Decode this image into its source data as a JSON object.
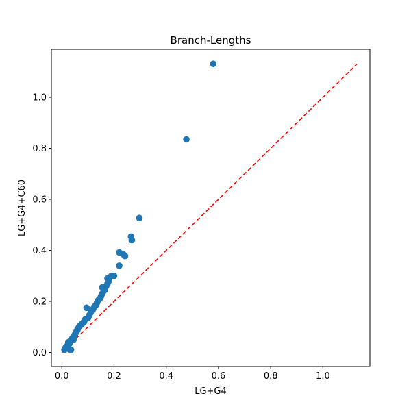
{
  "chart_data": {
    "type": "scatter",
    "title": "Branch-Lengths",
    "xlabel": "LG+G4",
    "ylabel": "LG+G4+C60",
    "xlim": [
      -0.04,
      1.18
    ],
    "ylim": [
      -0.055,
      1.188
    ],
    "xticks": [
      {
        "value": 0.0,
        "label": "0.0"
      },
      {
        "value": 0.2,
        "label": "0.2"
      },
      {
        "value": 0.4,
        "label": "0.4"
      },
      {
        "value": 0.6,
        "label": "0.6"
      },
      {
        "value": 0.8,
        "label": "0.8"
      },
      {
        "value": 1.0,
        "label": "1.0"
      }
    ],
    "yticks": [
      {
        "value": 0.0,
        "label": "0.0"
      },
      {
        "value": 0.2,
        "label": "0.2"
      },
      {
        "value": 0.4,
        "label": "0.4"
      },
      {
        "value": 0.6,
        "label": "0.6"
      },
      {
        "value": 0.8,
        "label": "0.8"
      },
      {
        "value": 1.0,
        "label": "1.0"
      }
    ],
    "grid": false,
    "point_color": "#1f77b4",
    "reference_line": {
      "from": [
        0.0,
        0.0
      ],
      "to": [
        1.13,
        1.13
      ],
      "color": "#ff0000",
      "style": "dashed"
    },
    "points": [
      [
        0.01,
        0.01
      ],
      [
        0.012,
        0.015
      ],
      [
        0.015,
        0.02
      ],
      [
        0.018,
        0.022
      ],
      [
        0.02,
        0.025
      ],
      [
        0.022,
        0.028
      ],
      [
        0.025,
        0.03
      ],
      [
        0.028,
        0.033
      ],
      [
        0.03,
        0.036
      ],
      [
        0.032,
        0.04
      ],
      [
        0.035,
        0.045
      ],
      [
        0.038,
        0.05
      ],
      [
        0.04,
        0.055
      ],
      [
        0.042,
        0.058
      ],
      [
        0.045,
        0.06
      ],
      [
        0.048,
        0.065
      ],
      [
        0.05,
        0.07
      ],
      [
        0.052,
        0.075
      ],
      [
        0.055,
        0.08
      ],
      [
        0.058,
        0.085
      ],
      [
        0.06,
        0.09
      ],
      [
        0.063,
        0.095
      ],
      [
        0.066,
        0.1
      ],
      [
        0.07,
        0.105
      ],
      [
        0.075,
        0.11
      ],
      [
        0.08,
        0.115
      ],
      [
        0.085,
        0.12
      ],
      [
        0.03,
        0.012
      ],
      [
        0.035,
        0.01
      ],
      [
        0.025,
        0.04
      ],
      [
        0.045,
        0.05
      ],
      [
        0.09,
        0.13
      ],
      [
        0.1,
        0.135
      ],
      [
        0.105,
        0.145
      ],
      [
        0.11,
        0.155
      ],
      [
        0.115,
        0.165
      ],
      [
        0.12,
        0.17
      ],
      [
        0.125,
        0.18
      ],
      [
        0.13,
        0.185
      ],
      [
        0.135,
        0.195
      ],
      [
        0.14,
        0.205
      ],
      [
        0.145,
        0.21
      ],
      [
        0.15,
        0.22
      ],
      [
        0.155,
        0.23
      ],
      [
        0.16,
        0.24
      ],
      [
        0.095,
        0.175
      ],
      [
        0.155,
        0.255
      ],
      [
        0.165,
        0.245
      ],
      [
        0.17,
        0.26
      ],
      [
        0.175,
        0.27
      ],
      [
        0.18,
        0.28
      ],
      [
        0.175,
        0.29
      ],
      [
        0.19,
        0.3
      ],
      [
        0.2,
        0.3
      ],
      [
        0.22,
        0.34
      ],
      [
        0.22,
        0.392
      ],
      [
        0.235,
        0.385
      ],
      [
        0.242,
        0.378
      ],
      [
        0.265,
        0.454
      ],
      [
        0.268,
        0.44
      ],
      [
        0.297,
        0.527
      ],
      [
        0.477,
        0.835
      ],
      [
        0.58,
        1.131
      ]
    ]
  }
}
